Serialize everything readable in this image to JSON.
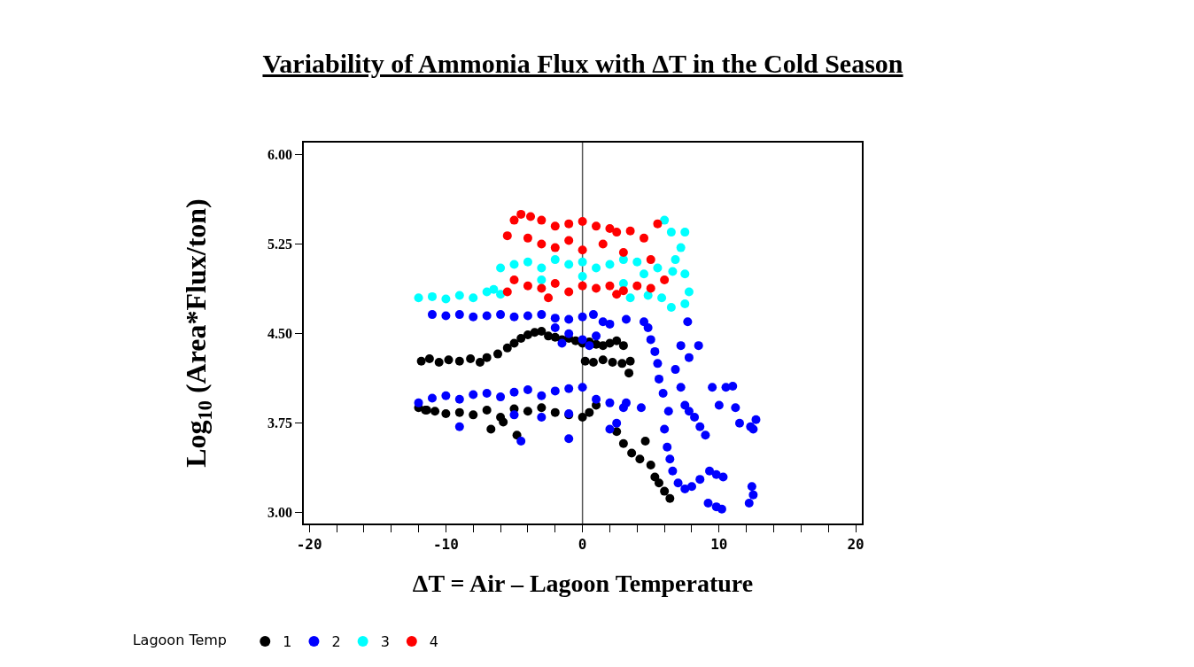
{
  "chart_data": {
    "type": "scatter",
    "title": "Variability of Ammonia Flux with ΔT in the Cold Season",
    "xlabel": "ΔT = Air – Lagoon Temperature",
    "ylabel": "Log$_{10}$ (Area*Flux/ton)",
    "legend_title": "Lagoon Temp",
    "xlim": [
      -20.4,
      20.45
    ],
    "ylim": [
      2.91,
      6.1
    ],
    "xticks": [
      -20,
      {
        "value": -18,
        "label": null
      },
      {
        "value": -16,
        "label": null
      },
      {
        "value": -14,
        "label": null
      },
      {
        "value": -12,
        "label": null
      },
      -10,
      {
        "value": -8,
        "label": null
      },
      {
        "value": -6,
        "label": null
      },
      {
        "value": -4,
        "label": null
      },
      {
        "value": -2,
        "label": null
      },
      0,
      {
        "value": 2,
        "label": null
      },
      {
        "value": 4,
        "label": null
      },
      {
        "value": 6,
        "label": null
      },
      {
        "value": 8,
        "label": null
      },
      10,
      {
        "value": 12,
        "label": null
      },
      {
        "value": 14,
        "label": null
      },
      {
        "value": 16,
        "label": null
      },
      {
        "value": 18,
        "label": null
      },
      20
    ],
    "yticks": [
      {
        "value": 3,
        "label": "3.00"
      },
      {
        "value": 3.75,
        "label": "3.75"
      },
      {
        "value": 4.5,
        "label": "4.50"
      },
      {
        "value": 5.25,
        "label": "5.25"
      },
      {
        "value": 6,
        "label": "6.00"
      }
    ],
    "ref_lines": [
      {
        "axis": "x",
        "value": 0,
        "color": "#555555"
      }
    ],
    "grid": false,
    "legend": "bottom",
    "marker": "circle",
    "series": [
      {
        "name": "1",
        "color": "#000000",
        "x": [
          -11.8,
          -11.2,
          -10.5,
          -9.8,
          -9,
          -8.2,
          -7.5,
          -7,
          -6.2,
          -5.5,
          -5,
          -4.5,
          -4,
          -3.5,
          -3,
          -2.5,
          -2,
          -1.5,
          -1,
          -0.5,
          0,
          0.5,
          1,
          1.5,
          2,
          2.5,
          3,
          0.2,
          0.8,
          1.5,
          2.2,
          2.9,
          3.5,
          -12,
          -11.5,
          -10.8,
          -10,
          -9,
          -8,
          -7,
          -6,
          -5,
          -4,
          -3,
          -2,
          -1,
          0,
          0.5,
          1,
          -11.4,
          -6.7,
          -5.8,
          -4.8,
          2.5,
          3,
          3.6,
          4.2,
          4.6,
          5,
          5.3,
          5.6,
          6,
          6.4,
          3.4
        ],
        "values": [
          4.27,
          4.29,
          4.26,
          4.28,
          4.27,
          4.29,
          4.26,
          4.3,
          4.33,
          4.38,
          4.42,
          4.46,
          4.49,
          4.51,
          4.52,
          4.48,
          4.47,
          4.45,
          4.46,
          4.44,
          4.42,
          4.43,
          4.41,
          4.4,
          4.42,
          4.44,
          4.4,
          4.27,
          4.26,
          4.28,
          4.26,
          4.25,
          4.27,
          3.88,
          3.86,
          3.85,
          3.83,
          3.84,
          3.82,
          3.86,
          3.8,
          3.87,
          3.85,
          3.88,
          3.84,
          3.82,
          3.8,
          3.84,
          3.9,
          3.86,
          3.7,
          3.76,
          3.65,
          3.68,
          3.58,
          3.5,
          3.45,
          3.6,
          3.4,
          3.3,
          3.25,
          3.18,
          3.12,
          4.17
        ]
      },
      {
        "name": "2",
        "color": "#0000ff",
        "x": [
          -11,
          -10,
          -9,
          -8,
          -7,
          -6,
          -5,
          -4,
          -3,
          -2,
          -1,
          0,
          0.8,
          1.5,
          -2,
          -1,
          0,
          1,
          2,
          -1.5,
          0.5,
          -12,
          -11,
          -10,
          -9,
          -8,
          -7,
          -6,
          -5,
          -4,
          -3,
          -2,
          -1,
          0,
          1,
          2,
          3,
          -5,
          -3,
          -1,
          -9,
          -4.5,
          -1,
          4.8,
          5,
          5.3,
          5.5,
          5.6,
          5.9,
          6.3,
          6,
          6.2,
          6.4,
          6.6,
          7,
          7.5,
          8,
          8.6,
          9.3,
          9.8,
          10.3,
          4.3,
          3.2,
          2.5,
          2,
          7.2,
          7.8,
          8.5,
          6.8,
          7.2,
          7.5,
          7.8,
          8.2,
          8.6,
          9,
          9.5,
          10.5,
          11,
          10,
          11.2,
          11.5,
          12.3,
          12.7,
          12.5,
          9.2,
          9.8,
          10.2,
          12.2,
          12.5,
          12.4,
          3.2,
          4.5,
          7.7
        ],
        "values": [
          4.66,
          4.65,
          4.66,
          4.64,
          4.65,
          4.66,
          4.64,
          4.65,
          4.66,
          4.63,
          4.62,
          4.64,
          4.66,
          4.6,
          4.55,
          4.5,
          4.45,
          4.48,
          4.58,
          4.42,
          4.4,
          3.92,
          3.96,
          3.98,
          3.95,
          3.99,
          4,
          3.97,
          4.01,
          4.03,
          3.98,
          4.02,
          4.04,
          4.05,
          3.95,
          3.92,
          3.88,
          3.82,
          3.8,
          3.83,
          3.72,
          3.6,
          3.62,
          4.55,
          4.45,
          4.35,
          4.25,
          4.12,
          4,
          3.85,
          3.7,
          3.55,
          3.45,
          3.35,
          3.25,
          3.2,
          3.22,
          3.28,
          3.35,
          3.32,
          3.3,
          3.88,
          3.92,
          3.75,
          3.7,
          4.4,
          4.3,
          4.4,
          4.2,
          4.05,
          3.9,
          3.85,
          3.8,
          3.72,
          3.65,
          4.05,
          4.05,
          4.06,
          3.9,
          3.88,
          3.75,
          3.72,
          3.78,
          3.7,
          3.08,
          3.05,
          3.03,
          3.08,
          3.15,
          3.22,
          4.62,
          4.6,
          4.6
        ]
      },
      {
        "name": "3",
        "color": "#00ffff",
        "x": [
          -12,
          -11,
          -10,
          -9,
          -8,
          -7,
          -6,
          -6.5,
          -6,
          -5,
          -4,
          -3,
          -2,
          -1,
          0,
          1,
          2,
          3,
          4,
          5.5,
          -3,
          0,
          3,
          4.5,
          6,
          6.5,
          7.5,
          7.2,
          6.8,
          7.5,
          6.6,
          7.8,
          7.5,
          5.8,
          4.8,
          3.5,
          6.5
        ],
        "values": [
          4.8,
          4.81,
          4.79,
          4.82,
          4.8,
          4.85,
          4.83,
          4.87,
          5.05,
          5.08,
          5.1,
          5.05,
          5.12,
          5.08,
          5.1,
          5.05,
          5.08,
          5.12,
          5.1,
          5.05,
          4.95,
          4.98,
          4.92,
          5,
          5.45,
          5.35,
          5.35,
          5.22,
          5.12,
          5,
          5.02,
          4.85,
          4.75,
          4.8,
          4.82,
          4.8,
          4.72
        ]
      },
      {
        "name": "4",
        "color": "#ff0000",
        "x": [
          -5,
          -4.5,
          -3.8,
          -3,
          -2,
          -1,
          0,
          1,
          2,
          2.5,
          3.5,
          4.5,
          5.5,
          -5.5,
          -4,
          -3,
          -2,
          -1,
          0,
          1.5,
          3,
          5,
          -5,
          -4,
          -3,
          -2,
          -1,
          0,
          1,
          2,
          3,
          4,
          5,
          6,
          -5.5,
          -2.5,
          2.5
        ],
        "values": [
          5.45,
          5.5,
          5.48,
          5.45,
          5.4,
          5.42,
          5.44,
          5.4,
          5.38,
          5.35,
          5.36,
          5.3,
          5.42,
          5.32,
          5.3,
          5.25,
          5.22,
          5.28,
          5.2,
          5.25,
          5.18,
          5.12,
          4.95,
          4.9,
          4.88,
          4.92,
          4.85,
          4.9,
          4.88,
          4.9,
          4.86,
          4.9,
          4.88,
          4.95,
          4.85,
          4.8,
          4.83
        ]
      }
    ]
  }
}
